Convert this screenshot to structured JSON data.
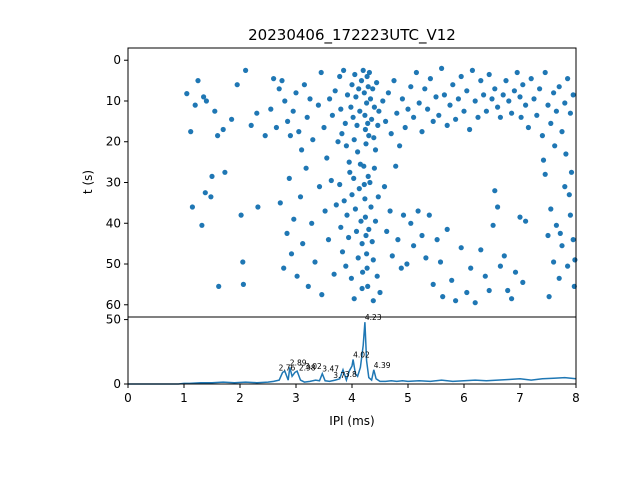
{
  "colors": {
    "marker": "#1f77b4",
    "axes": "#000000",
    "background": "#ffffff"
  },
  "chart_data": [
    {
      "type": "scatter",
      "title": "20230406_172223UTC_V12",
      "xlabel": "",
      "ylabel": "t (s)",
      "xlim": [
        0,
        8
      ],
      "ylim": [
        63,
        -3
      ],
      "y_inverted": true,
      "yticks": [
        "0",
        "10",
        "20",
        "30",
        "40",
        "50",
        "60"
      ],
      "grid": false,
      "points": [
        [
          1.05,
          8.2
        ],
        [
          1.12,
          17.5
        ],
        [
          1.2,
          11
        ],
        [
          1.25,
          5
        ],
        [
          1.35,
          9
        ],
        [
          1.4,
          10
        ],
        [
          1.5,
          28.5
        ],
        [
          1.55,
          12.5
        ],
        [
          1.6,
          18.5
        ],
        [
          1.7,
          17
        ],
        [
          1.85,
          14.5
        ],
        [
          1.95,
          6
        ],
        [
          2.1,
          2.5
        ],
        [
          2.2,
          16
        ],
        [
          2.3,
          13
        ],
        [
          2.45,
          18.5
        ],
        [
          2.55,
          12
        ],
        [
          2.6,
          4.5
        ],
        [
          2.65,
          16.5
        ],
        [
          2.7,
          7
        ],
        [
          1.15,
          36
        ],
        [
          1.32,
          40.5
        ],
        [
          1.38,
          32.5
        ],
        [
          1.48,
          33.5
        ],
        [
          1.62,
          55.5
        ],
        [
          1.73,
          27.5
        ],
        [
          2.02,
          38
        ],
        [
          2.05,
          49.5
        ],
        [
          2.06,
          55
        ],
        [
          2.32,
          36
        ],
        [
          2.75,
          5
        ],
        [
          2.8,
          10
        ],
        [
          2.85,
          15
        ],
        [
          2.9,
          18.5
        ],
        [
          2.95,
          12.5
        ],
        [
          3.0,
          8
        ],
        [
          3.05,
          17.5
        ],
        [
          3.1,
          22
        ],
        [
          3.15,
          6
        ],
        [
          3.2,
          14
        ],
        [
          3.25,
          9.5
        ],
        [
          3.3,
          19.5
        ],
        [
          3.4,
          11
        ],
        [
          3.45,
          3
        ],
        [
          3.5,
          16.5
        ],
        [
          3.55,
          24
        ],
        [
          3.6,
          9.5
        ],
        [
          3.65,
          13.5
        ],
        [
          3.7,
          7.5
        ],
        [
          3.75,
          20
        ],
        [
          2.72,
          35
        ],
        [
          2.78,
          51
        ],
        [
          2.84,
          42.5
        ],
        [
          2.88,
          29
        ],
        [
          2.92,
          47.5
        ],
        [
          2.96,
          39
        ],
        [
          3.02,
          53
        ],
        [
          3.08,
          33.5
        ],
        [
          3.12,
          45
        ],
        [
          3.18,
          26.5
        ],
        [
          3.22,
          55.5
        ],
        [
          3.28,
          40
        ],
        [
          3.34,
          49.5
        ],
        [
          3.42,
          31
        ],
        [
          3.46,
          57.5
        ],
        [
          3.52,
          37
        ],
        [
          3.58,
          44
        ],
        [
          3.63,
          29.5
        ],
        [
          3.68,
          52.5
        ],
        [
          3.72,
          35.5
        ],
        [
          3.78,
          4
        ],
        [
          3.8,
          12
        ],
        [
          3.82,
          18
        ],
        [
          3.85,
          2.5
        ],
        [
          3.88,
          15.5
        ],
        [
          3.9,
          21
        ],
        [
          3.92,
          8.5
        ],
        [
          3.95,
          25
        ],
        [
          3.98,
          11.5
        ],
        [
          4.0,
          6
        ],
        [
          3.78,
          30.5
        ],
        [
          3.8,
          41
        ],
        [
          3.83,
          47
        ],
        [
          3.86,
          34.5
        ],
        [
          3.89,
          50.5
        ],
        [
          3.91,
          38
        ],
        [
          3.94,
          43.5
        ],
        [
          3.96,
          27.5
        ],
        [
          3.99,
          53.5
        ],
        [
          4.0,
          33
        ],
        [
          4.02,
          14
        ],
        [
          4.04,
          19.5
        ],
        [
          4.05,
          3.5
        ],
        [
          4.07,
          9
        ],
        [
          4.09,
          16
        ],
        [
          4.1,
          22.5
        ],
        [
          4.12,
          7
        ],
        [
          4.14,
          12.5
        ],
        [
          4.15,
          25.5
        ],
        [
          4.17,
          5
        ],
        [
          4.03,
          29
        ],
        [
          4.06,
          36.5
        ],
        [
          4.08,
          42
        ],
        [
          4.11,
          48.5
        ],
        [
          4.13,
          31.5
        ],
        [
          4.16,
          39.5
        ],
        [
          4.18,
          45
        ],
        [
          4.19,
          52
        ],
        [
          4.18,
          56
        ],
        [
          4.04,
          58.5
        ],
        [
          4.2,
          2.5
        ],
        [
          4.22,
          8
        ],
        [
          4.23,
          13.5
        ],
        [
          4.24,
          17
        ],
        [
          4.25,
          20.5
        ],
        [
          4.26,
          10.5
        ],
        [
          4.27,
          4
        ],
        [
          4.28,
          15.5
        ],
        [
          4.29,
          6.5
        ],
        [
          4.3,
          18.5
        ],
        [
          4.21,
          26
        ],
        [
          4.22,
          30.5
        ],
        [
          4.23,
          34
        ],
        [
          4.24,
          38.5
        ],
        [
          4.25,
          43
        ],
        [
          4.26,
          47.5
        ],
        [
          4.27,
          51
        ],
        [
          4.28,
          55.5
        ],
        [
          4.29,
          28.5
        ],
        [
          4.3,
          41.5
        ],
        [
          4.31,
          3
        ],
        [
          4.33,
          9.5
        ],
        [
          4.35,
          14.5
        ],
        [
          4.37,
          7
        ],
        [
          4.39,
          19
        ],
        [
          4.4,
          11.5
        ],
        [
          4.42,
          22
        ],
        [
          4.44,
          5.5
        ],
        [
          4.46,
          16
        ],
        [
          4.48,
          12.5
        ],
        [
          4.32,
          30
        ],
        [
          4.34,
          36
        ],
        [
          4.36,
          44.5
        ],
        [
          4.38,
          49
        ],
        [
          4.4,
          26.5
        ],
        [
          4.42,
          39.5
        ],
        [
          4.45,
          53
        ],
        [
          4.47,
          33.5
        ],
        [
          4.5,
          57
        ],
        [
          4.38,
          59
        ],
        [
          4.55,
          10
        ],
        [
          4.6,
          15
        ],
        [
          4.65,
          8
        ],
        [
          4.7,
          18
        ],
        [
          4.75,
          5
        ],
        [
          4.8,
          13
        ],
        [
          4.85,
          21
        ],
        [
          4.9,
          9.5
        ],
        [
          4.95,
          16.5
        ],
        [
          5.0,
          12
        ],
        [
          4.58,
          31
        ],
        [
          4.62,
          42
        ],
        [
          4.68,
          37
        ],
        [
          4.72,
          48
        ],
        [
          4.78,
          26
        ],
        [
          4.82,
          44
        ],
        [
          4.88,
          51
        ],
        [
          4.92,
          38
        ],
        [
          4.98,
          50
        ],
        [
          5.05,
          40
        ],
        [
          5.05,
          6.5
        ],
        [
          5.1,
          14
        ],
        [
          5.15,
          3
        ],
        [
          5.2,
          10.5
        ],
        [
          5.25,
          17.5
        ],
        [
          5.3,
          7
        ],
        [
          5.35,
          12
        ],
        [
          5.4,
          4.5
        ],
        [
          5.45,
          15
        ],
        [
          5.5,
          9
        ],
        [
          5.1,
          45.5
        ],
        [
          5.18,
          37
        ],
        [
          5.25,
          43
        ],
        [
          5.32,
          48.5
        ],
        [
          5.38,
          38
        ],
        [
          5.45,
          55
        ],
        [
          5.52,
          44
        ],
        [
          5.58,
          49.5
        ],
        [
          5.62,
          58
        ],
        [
          5.7,
          41.5
        ],
        [
          5.55,
          13.5
        ],
        [
          5.6,
          2
        ],
        [
          5.65,
          8.5
        ],
        [
          5.7,
          16
        ],
        [
          5.75,
          11
        ],
        [
          5.8,
          6
        ],
        [
          5.85,
          14.5
        ],
        [
          5.9,
          9.5
        ],
        [
          5.95,
          4
        ],
        [
          6.0,
          12.5
        ],
        [
          6.05,
          7.5
        ],
        [
          6.1,
          17
        ],
        [
          6.15,
          2.5
        ],
        [
          6.2,
          10
        ],
        [
          6.25,
          14
        ],
        [
          6.3,
          5
        ],
        [
          6.35,
          8.5
        ],
        [
          6.4,
          12.5
        ],
        [
          6.45,
          3.5
        ],
        [
          6.5,
          9.5
        ],
        [
          5.78,
          54
        ],
        [
          5.85,
          59
        ],
        [
          5.95,
          46
        ],
        [
          6.05,
          57
        ],
        [
          6.12,
          51
        ],
        [
          6.2,
          59.5
        ],
        [
          6.3,
          46.5
        ],
        [
          6.38,
          53
        ],
        [
          6.45,
          56.5
        ],
        [
          6.52,
          40.5
        ],
        [
          6.55,
          7
        ],
        [
          6.6,
          11.5
        ],
        [
          6.65,
          14
        ],
        [
          6.7,
          8.5
        ],
        [
          6.75,
          5
        ],
        [
          6.8,
          10
        ],
        [
          6.85,
          13
        ],
        [
          6.9,
          7.5
        ],
        [
          6.95,
          3
        ],
        [
          7.0,
          9
        ],
        [
          6.55,
          32
        ],
        [
          6.6,
          36
        ],
        [
          6.65,
          50.5
        ],
        [
          6.72,
          48
        ],
        [
          6.78,
          56.5
        ],
        [
          6.85,
          58.5
        ],
        [
          6.92,
          52
        ],
        [
          7.0,
          38.5
        ],
        [
          7.05,
          54.5
        ],
        [
          7.1,
          39.5
        ],
        [
          7.02,
          14
        ],
        [
          7.05,
          6
        ],
        [
          7.1,
          11
        ],
        [
          7.15,
          16.5
        ],
        [
          7.2,
          4.5
        ],
        [
          7.25,
          9.5
        ],
        [
          7.3,
          13.5
        ],
        [
          7.35,
          7
        ],
        [
          7.4,
          18.5
        ],
        [
          7.45,
          3
        ],
        [
          7.45,
          28
        ],
        [
          7.5,
          43
        ],
        [
          7.55,
          36.5
        ],
        [
          7.6,
          49.5
        ],
        [
          7.65,
          40.5
        ],
        [
          7.7,
          53.5
        ],
        [
          7.75,
          45.5
        ],
        [
          7.8,
          31
        ],
        [
          7.85,
          50.5
        ],
        [
          7.9,
          38
        ],
        [
          7.5,
          11
        ],
        [
          7.55,
          15.5
        ],
        [
          7.6,
          8
        ],
        [
          7.65,
          12.5
        ],
        [
          7.7,
          6.5
        ],
        [
          7.75,
          17.5
        ],
        [
          7.8,
          10.5
        ],
        [
          7.85,
          4.5
        ],
        [
          7.9,
          13
        ],
        [
          7.95,
          8.5
        ],
        [
          7.92,
          27.5
        ],
        [
          7.95,
          44
        ],
        [
          7.98,
          49
        ],
        [
          7.97,
          55.5
        ],
        [
          7.88,
          33
        ],
        [
          7.82,
          23
        ],
        [
          7.72,
          42.5
        ],
        [
          7.62,
          21
        ],
        [
          7.42,
          24.5
        ],
        [
          7.52,
          58
        ]
      ]
    },
    {
      "type": "line",
      "xlabel": "IPI (ms)",
      "ylabel": "",
      "xlim": [
        0,
        8
      ],
      "ylim": [
        0,
        52
      ],
      "xticks": [
        "0",
        "1",
        "2",
        "3",
        "4",
        "5",
        "6",
        "7",
        "8"
      ],
      "yticks": [
        "0",
        "50"
      ],
      "grid": false,
      "series": [
        {
          "x": [
            0,
            0.5,
            0.9,
            1.0,
            1.1,
            1.3,
            1.5,
            1.7,
            1.9,
            2.1,
            2.3,
            2.5,
            2.6,
            2.7,
            2.76,
            2.8,
            2.86,
            2.89,
            2.93,
            2.98,
            3.02,
            3.08,
            3.15,
            3.25,
            3.35,
            3.42,
            3.47,
            3.52,
            3.6,
            3.7,
            3.78,
            3.84,
            3.9,
            3.95,
            4.0,
            4.02,
            4.06,
            4.1,
            4.15,
            4.2,
            4.23,
            4.26,
            4.3,
            4.35,
            4.39,
            4.43,
            4.5,
            4.6,
            4.7,
            4.8,
            4.9,
            5.0,
            5.2,
            5.4,
            5.6,
            5.8,
            6.0,
            6.2,
            6.4,
            6.6,
            6.8,
            7.0,
            7.2,
            7.4,
            7.6,
            7.8,
            8.0
          ],
          "y": [
            0,
            0,
            0,
            0.5,
            0.5,
            1,
            1,
            1.5,
            1,
            1.5,
            1,
            1.5,
            2,
            3,
            9,
            10,
            3,
            13,
            6,
            9,
            10,
            3,
            1.5,
            2,
            3,
            2.5,
            8,
            2.5,
            2,
            3,
            4,
            11,
            3,
            10,
            14,
            19,
            8,
            6,
            13,
            30,
            48,
            18,
            5,
            3,
            11,
            4,
            2,
            2,
            2.5,
            2,
            2.5,
            2,
            2.5,
            2,
            3,
            2,
            2.5,
            3,
            2.5,
            3,
            3.5,
            4,
            3,
            4,
            4.5,
            5,
            4
          ]
        }
      ],
      "annotations": [
        "2.89",
        "2.76",
        "2.98",
        "3.02",
        "3.47",
        "3.7",
        "3.8",
        "4.02",
        "4.23",
        "4.39"
      ]
    }
  ]
}
